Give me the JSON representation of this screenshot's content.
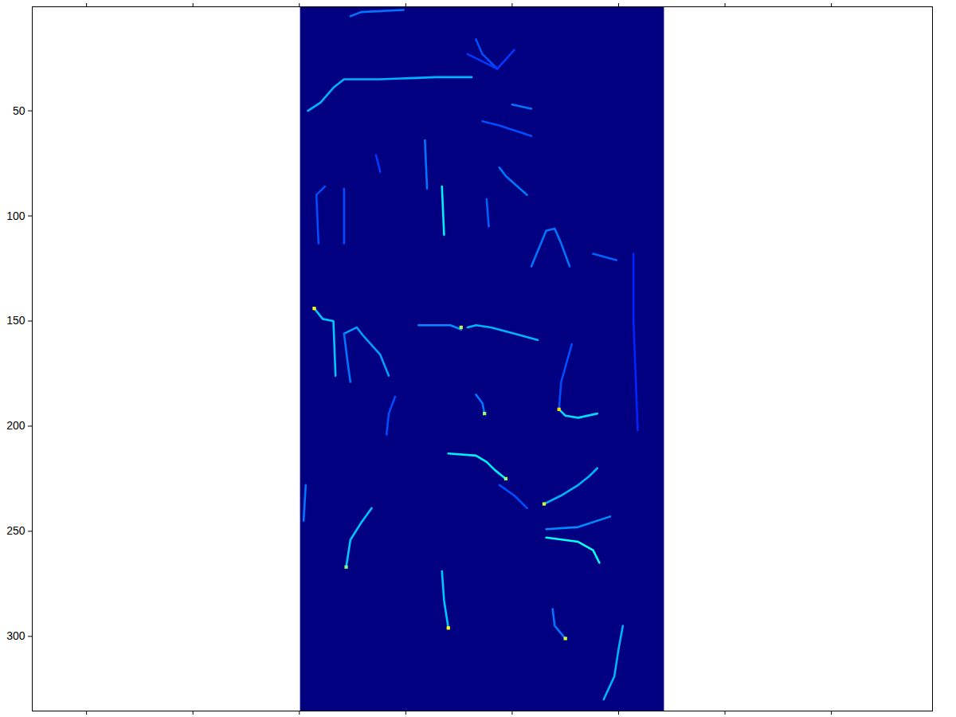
{
  "chart_data": {
    "type": "heatmap",
    "color": "jet",
    "clim": [
      0,
      1
    ],
    "columns": 171,
    "rows": 335,
    "background": 0,
    "xlim": [
      -125.5,
      297.5
    ],
    "ylim": [
      0.5,
      335.5
    ],
    "xticks": [
      -100,
      -50,
      0,
      50,
      100,
      150,
      200,
      250
    ],
    "yticks": [
      50,
      100,
      150,
      200,
      250,
      300
    ],
    "tick_labels": "y",
    "streams": [
      {
        "value": 0.3,
        "path": [
          [
            4,
            50
          ],
          [
            10,
            46
          ],
          [
            16,
            39
          ],
          [
            21,
            35
          ],
          [
            38,
            35
          ],
          [
            64,
            34
          ],
          [
            81,
            34
          ]
        ]
      },
      {
        "value": 0.2,
        "path": [
          [
            93,
            30
          ],
          [
            86,
            23
          ],
          [
            83,
            16
          ]
        ]
      },
      {
        "value": 0.18,
        "path": [
          [
            79,
            23
          ],
          [
            93,
            30
          ],
          [
            101,
            21
          ]
        ]
      },
      {
        "value": 0.36,
        "path": [
          [
            67,
            86
          ],
          [
            68,
            109
          ]
        ]
      },
      {
        "value": 0.24,
        "path": [
          [
            59,
            64
          ],
          [
            60,
            87
          ]
        ]
      },
      {
        "value": 0.24,
        "path": [
          [
            94,
            77
          ],
          [
            97,
            81
          ],
          [
            107,
            90
          ]
        ]
      },
      {
        "value": 0.22,
        "path": [
          [
            88,
            92
          ],
          [
            89,
            105
          ]
        ]
      },
      {
        "value": 0.24,
        "path": [
          [
            109,
            124
          ],
          [
            116,
            107
          ],
          [
            120,
            106
          ],
          [
            123,
            113
          ],
          [
            127,
            124
          ]
        ]
      },
      {
        "value": 0.32,
        "path": [
          [
            7,
            144
          ],
          [
            11,
            149
          ],
          [
            16,
            150
          ],
          [
            17,
            176
          ]
        ]
      },
      {
        "value": 0.28,
        "path": [
          [
            21,
            156
          ],
          [
            27,
            153
          ],
          [
            30,
            157
          ],
          [
            38,
            166
          ],
          [
            42,
            176
          ]
        ]
      },
      {
        "value": 0.24,
        "path": [
          [
            21,
            156
          ],
          [
            23,
            172
          ],
          [
            24,
            179
          ]
        ]
      },
      {
        "value": 0.26,
        "path": [
          [
            56,
            152
          ],
          [
            71,
            152
          ],
          [
            76,
            154
          ]
        ]
      },
      {
        "value": 0.3,
        "path": [
          [
            79,
            153
          ],
          [
            83,
            152
          ],
          [
            90,
            153
          ],
          [
            101,
            156
          ],
          [
            112,
            159
          ]
        ]
      },
      {
        "value": 0.34,
        "path": [
          [
            122,
            192
          ],
          [
            125,
            195
          ],
          [
            131,
            196
          ],
          [
            140,
            194
          ]
        ]
      },
      {
        "value": 0.2,
        "path": [
          [
            122,
            192
          ],
          [
            123,
            179
          ],
          [
            128,
            161
          ]
        ]
      },
      {
        "value": 0.24,
        "path": [
          [
            87,
            194
          ],
          [
            86,
            189
          ],
          [
            83,
            185
          ]
        ]
      },
      {
        "value": 0.2,
        "path": [
          [
            45,
            186
          ],
          [
            42,
            194
          ],
          [
            41,
            204
          ]
        ]
      },
      {
        "value": 0.36,
        "path": [
          [
            70,
            213
          ],
          [
            83,
            214
          ],
          [
            88,
            217
          ],
          [
            92,
            221
          ],
          [
            97,
            225
          ]
        ]
      },
      {
        "value": 0.3,
        "path": [
          [
            115,
            237
          ],
          [
            123,
            233
          ],
          [
            131,
            228
          ],
          [
            136,
            224
          ],
          [
            140,
            220
          ]
        ]
      },
      {
        "value": 0.2,
        "path": [
          [
            107,
            239
          ],
          [
            101,
            233
          ],
          [
            94,
            228
          ]
        ]
      },
      {
        "value": 0.38,
        "path": [
          [
            116,
            253
          ],
          [
            131,
            255
          ],
          [
            138,
            259
          ],
          [
            141,
            265
          ]
        ]
      },
      {
        "value": 0.26,
        "path": [
          [
            116,
            249
          ],
          [
            131,
            248
          ],
          [
            146,
            243
          ]
        ]
      },
      {
        "value": 0.32,
        "path": [
          [
            22,
            267
          ],
          [
            24,
            254
          ],
          [
            29,
            246
          ],
          [
            34,
            239
          ]
        ]
      },
      {
        "value": 0.24,
        "path": [
          [
            2,
            245
          ],
          [
            3,
            228
          ]
        ]
      },
      {
        "value": 0.32,
        "path": [
          [
            70,
            296
          ],
          [
            68,
            283
          ],
          [
            67,
            269
          ]
        ]
      },
      {
        "value": 0.24,
        "path": [
          [
            125,
            301
          ],
          [
            120,
            295
          ],
          [
            119,
            287
          ]
        ]
      },
      {
        "value": 0.3,
        "path": [
          [
            143,
            330
          ],
          [
            148,
            319
          ],
          [
            150,
            306
          ],
          [
            152,
            295
          ]
        ]
      },
      {
        "value": 0.16,
        "path": [
          [
            157,
            118
          ],
          [
            157,
            150
          ],
          [
            159,
            202
          ]
        ]
      },
      {
        "value": 0.2,
        "path": [
          [
            9,
            113
          ],
          [
            8,
            90
          ],
          [
            12,
            86
          ]
        ]
      },
      {
        "value": 0.2,
        "path": [
          [
            21,
            87
          ],
          [
            21,
            113
          ]
        ]
      },
      {
        "value": 0.18,
        "path": [
          [
            36,
            71
          ],
          [
            38,
            79
          ]
        ]
      },
      {
        "value": 0.22,
        "path": [
          [
            138,
            118
          ],
          [
            149,
            121
          ]
        ]
      },
      {
        "value": 0.24,
        "path": [
          [
            24,
            5
          ],
          [
            29,
            3
          ],
          [
            49,
            2
          ]
        ]
      },
      {
        "value": 0.2,
        "path": [
          [
            86,
            55
          ],
          [
            94,
            57
          ],
          [
            109,
            62
          ]
        ]
      },
      {
        "value": 0.24,
        "path": [
          [
            100,
            47
          ],
          [
            109,
            49
          ]
        ]
      }
    ],
    "cells": [
      [
        7,
        144,
        0.62
      ],
      [
        122,
        192,
        0.66
      ],
      [
        22,
        267,
        0.5
      ],
      [
        70,
        296,
        0.62
      ],
      [
        125,
        301,
        0.58
      ],
      [
        115,
        237,
        0.58
      ],
      [
        97,
        225,
        0.52
      ],
      [
        76,
        153,
        0.56
      ],
      [
        87,
        194,
        0.52
      ]
    ]
  }
}
